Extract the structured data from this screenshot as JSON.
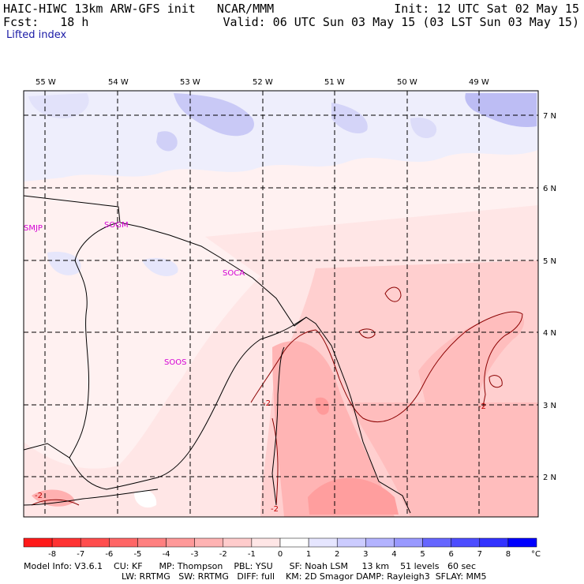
{
  "header": {
    "title": "HAIC-HIWC 13km ARW-GFS init   NCAR/MMM",
    "forecast": "Fcst:   18 h",
    "init": "Init: 12 UTC Sat 02 May 15",
    "valid": "Valid: 06 UTC Sun 03 May 15 (03 LST Sun 03 May 15)",
    "field": "Lifted index"
  },
  "map": {
    "lon_labels": [
      "55 W",
      "54 W",
      "53 W",
      "52 W",
      "51 W",
      "50 W",
      "49 W"
    ],
    "lat_labels": [
      "7 N",
      "6 N",
      "5 N",
      "4 N",
      "3 N",
      "2 N"
    ],
    "stations": [
      "SMJP",
      "SOCA",
      "SOOS",
      "SOGM"
    ],
    "contour_labels": [
      "-2",
      "-2",
      "-2",
      "-2"
    ]
  },
  "colorbar": {
    "ticks": [
      "-8",
      "-7",
      "-6",
      "-5",
      "-4",
      "-3",
      "-2",
      "-1",
      "0",
      "1",
      "2",
      "3",
      "4",
      "5",
      "6",
      "7",
      "8"
    ],
    "unit": "°C",
    "colors": [
      "#ff1a1a",
      "#ff3333",
      "#ff4d4d",
      "#ff6666",
      "#ff8080",
      "#ff9999",
      "#ffb3b3",
      "#ffcccc",
      "#ffe6e6",
      "#ffffff",
      "#e6e6ff",
      "#ccccff",
      "#b3b3ff",
      "#9999ff",
      "#6666ff",
      "#4d4dff",
      "#3333ff",
      "#0000ff"
    ]
  },
  "footer": {
    "line1": "Model Info: V3.6.1    CU: KF      MP: Thompson    PBL: YSU      SF: Noah LSM     13 km    51 levels   60 sec",
    "line2": "LW: RRTMG   SW: RRTMG   DIFF: full    KM: 2D Smagor DAMP: Rayleigh3  SFLAY: MM5"
  }
}
